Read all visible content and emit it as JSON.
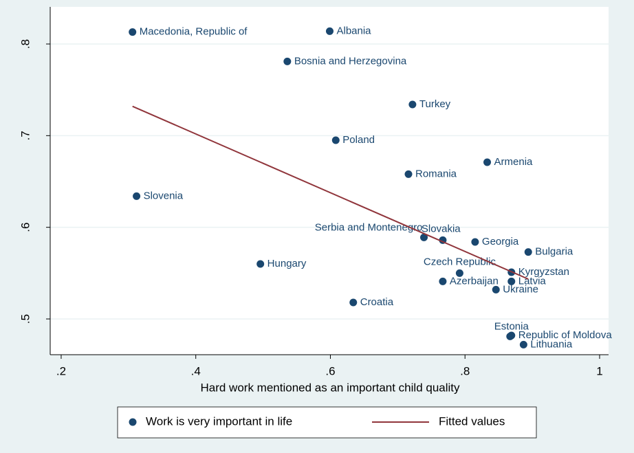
{
  "chart_data": {
    "type": "scatter",
    "x_label": "Hard work mentioned as an important child quality",
    "xlim": [
      0.1837,
      1.0133
    ],
    "ylim": [
      0.461,
      0.8405
    ],
    "xticks": [
      {
        "value": 0.2,
        "label": ".2"
      },
      {
        "value": 0.4,
        "label": ".4"
      },
      {
        "value": 0.6,
        "label": ".6"
      },
      {
        "value": 0.8,
        "label": ".8"
      },
      1
    ],
    "yticks": [
      {
        "value": 0.5,
        "label": ".5"
      },
      {
        "value": 0.6,
        "label": ".6"
      },
      {
        "value": 0.7,
        "label": ".7"
      },
      {
        "value": 0.8,
        "label": ".8"
      }
    ],
    "grid": true,
    "legend": "bottom",
    "series": [
      {
        "name": "Work is very important in life",
        "color": "#1a476f",
        "labels": [
          "Macedonia, Republic of",
          "Albania",
          "Bosnia and Herzegovina",
          "Turkey",
          "Poland",
          "Armenia",
          "Romania",
          "Slovenia",
          "Serbia and Montenegro",
          "Slovakia",
          "Georgia",
          "Bulgaria",
          "Hungary",
          "Czech Republic",
          "Kyrgyzstan",
          "Azerbaijan",
          "Latvia",
          "Ukraine",
          "Croatia",
          "Estonia",
          "Republic of Moldova",
          "Lithuania"
        ],
        "x": [
          0.306,
          0.599,
          0.536,
          0.722,
          0.608,
          0.833,
          0.716,
          0.312,
          0.739,
          0.767,
          0.815,
          0.894,
          0.496,
          0.792,
          0.869,
          0.767,
          0.869,
          0.846,
          0.634,
          0.867,
          0.869,
          0.887
        ],
        "values": [
          0.813,
          0.814,
          0.781,
          0.734,
          0.695,
          0.671,
          0.658,
          0.634,
          0.589,
          0.586,
          0.584,
          0.573,
          0.56,
          0.55,
          0.551,
          0.541,
          0.541,
          0.532,
          0.518,
          0.481,
          0.482,
          0.472
        ]
      },
      {
        "name": "Fitted values",
        "color": "#90353b",
        "type": "line",
        "x": [
          0.306,
          0.894
        ],
        "values": [
          0.732,
          0.5435
        ]
      }
    ]
  }
}
